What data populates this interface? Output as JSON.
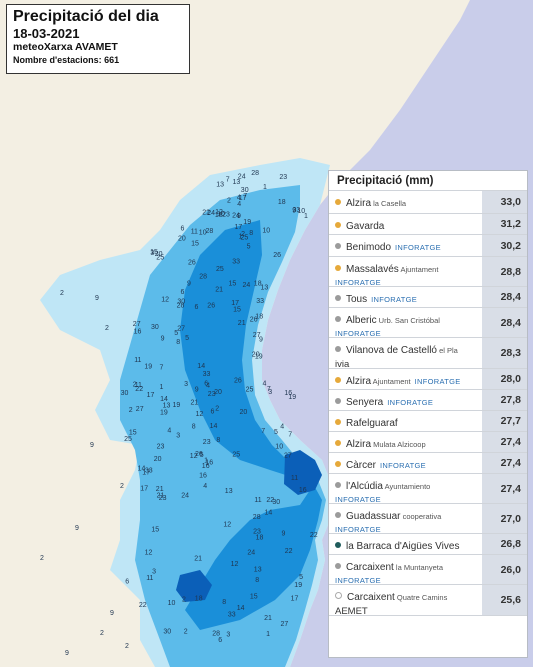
{
  "title": {
    "heading": "Precipitació del dia",
    "date": "18-03-2021",
    "network": "meteoXarxa AVAMET",
    "stations": "Nombre d'estacions: 661"
  },
  "colors": {
    "sea": "#c9cdea",
    "land": "#f3efe3",
    "rain_light": "#bfe6f6",
    "rain_mid": "#5cbbea",
    "rain_heavy": "#1a8fd9",
    "rain_max": "#0b5fb8",
    "dot_yellow": "#e6a93a",
    "dot_grey": "#9b9b9b",
    "dot_teal": "#1f5c5c"
  },
  "legend": {
    "header": "Precipitació (mm)",
    "rows": [
      {
        "name": "Alzira",
        "sub": "la Casella",
        "tag": "",
        "value": "33,0",
        "dot": "dot_yellow"
      },
      {
        "name": "Gavarda",
        "sub": "",
        "tag": "",
        "value": "31,2",
        "dot": "dot_yellow"
      },
      {
        "name": "Benimodo",
        "sub": "",
        "tag": "INFORATGE",
        "value": "30,2",
        "dot": "dot_grey"
      },
      {
        "name": "Massalavés",
        "sub": "Ajuntament",
        "tag": "INFORATGE",
        "value": "28,8",
        "dot": "dot_yellow"
      },
      {
        "name": "Tous",
        "sub": "",
        "tag": "INFORATGE",
        "value": "28,4",
        "dot": "dot_grey"
      },
      {
        "name": "Alberic",
        "sub": "Urb. San Cristóbal",
        "tag": "INFORATGE",
        "value": "28,4",
        "dot": "dot_grey"
      },
      {
        "name": "Vilanova de Castelló",
        "sub": "el Pla",
        "tag": "ivia",
        "value": "28,3",
        "dot": "dot_grey"
      },
      {
        "name": "Alzira",
        "sub": "Ajuntament",
        "tag": "INFORATGE",
        "value": "28,0",
        "dot": "dot_yellow"
      },
      {
        "name": "Senyera",
        "sub": "",
        "tag": "INFORATGE",
        "value": "27,8",
        "dot": "dot_grey"
      },
      {
        "name": "Rafelguaraf",
        "sub": "",
        "tag": "",
        "value": "27,7",
        "dot": "dot_yellow"
      },
      {
        "name": "Alzira",
        "sub": "Mulata Alzicoop",
        "tag": "",
        "value": "27,4",
        "dot": "dot_yellow"
      },
      {
        "name": "Càrcer",
        "sub": "",
        "tag": "INFORATGE",
        "value": "27,4",
        "dot": "dot_yellow"
      },
      {
        "name": "l'Alcúdia",
        "sub": "Ayuntamiento",
        "tag": "INFORATGE",
        "value": "27,4",
        "dot": "dot_grey"
      },
      {
        "name": "Guadassuar",
        "sub": "cooperativa",
        "tag": "INFORATGE",
        "value": "27,0",
        "dot": "dot_grey"
      },
      {
        "name": "la Barraca d'Aigües Vives",
        "sub": "",
        "tag": "",
        "value": "26,8",
        "dot": "dot_teal"
      },
      {
        "name": "Carcaixent",
        "sub": "la Muntanyeta",
        "tag": "INFORATGE",
        "value": "26,0",
        "dot": "dot_grey"
      },
      {
        "name": "Carcaixent",
        "sub": "Quatre Camins",
        "tag": "AEMET",
        "value": "25,6",
        "dot": "dot_white"
      }
    ]
  },
  "map_labels": [
    "2",
    "6",
    "4",
    "9",
    "12",
    "15",
    "17",
    "19",
    "21",
    "23",
    "25",
    "27",
    "28",
    "30",
    "33",
    "24",
    "26",
    "1",
    "3",
    "5",
    "8",
    "10",
    "13",
    "14",
    "16",
    "18",
    "20",
    "22",
    "7",
    "11"
  ]
}
